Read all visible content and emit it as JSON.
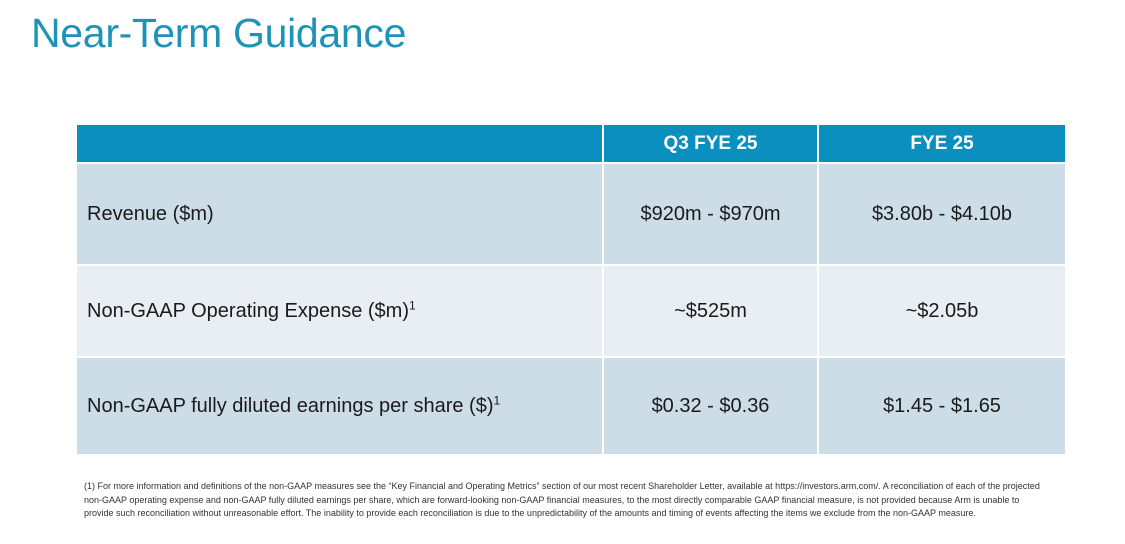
{
  "title": "Near-Term Guidance",
  "table": {
    "headers": [
      "",
      "Q3 FYE 25",
      "FYE 25"
    ],
    "rows": [
      {
        "metric": "Revenue ($m)",
        "footnote_ref": "",
        "q3": "$920m - $970m",
        "fye": "$3.80b - $4.10b"
      },
      {
        "metric": "Non-GAAP Operating Expense ($m)",
        "footnote_ref": "1",
        "q3": "~$525m",
        "fye": "~$2.05b"
      },
      {
        "metric": "Non-GAAP fully diluted earnings per share ($)",
        "footnote_ref": "1",
        "q3": "$0.32 - $0.36",
        "fye": "$1.45 - $1.65"
      }
    ]
  },
  "footnote": "(1) For more information and definitions of the non-GAAP measures see the “Key Financial and Operating Metrics” section of our most recent Shareholder Letter, available at https://investors.arm.com/. A reconciliation of each of the projected non-GAAP operating expense and non-GAAP fully diluted earnings per share, which are forward-looking non-GAAP financial measures, to the most directly comparable GAAP financial measure, is not provided because Arm is unable to provide such reconciliation without unreasonable effort. The inability to provide each reconciliation is due to the unpredictability of the amounts and timing of events affecting the items we exclude from the non-GAAP measure.",
  "colors": {
    "title": "#1d93b8",
    "header_bg": "#0b8fbe",
    "row_dark": "#cddde8",
    "row_light": "#e8eef4"
  }
}
